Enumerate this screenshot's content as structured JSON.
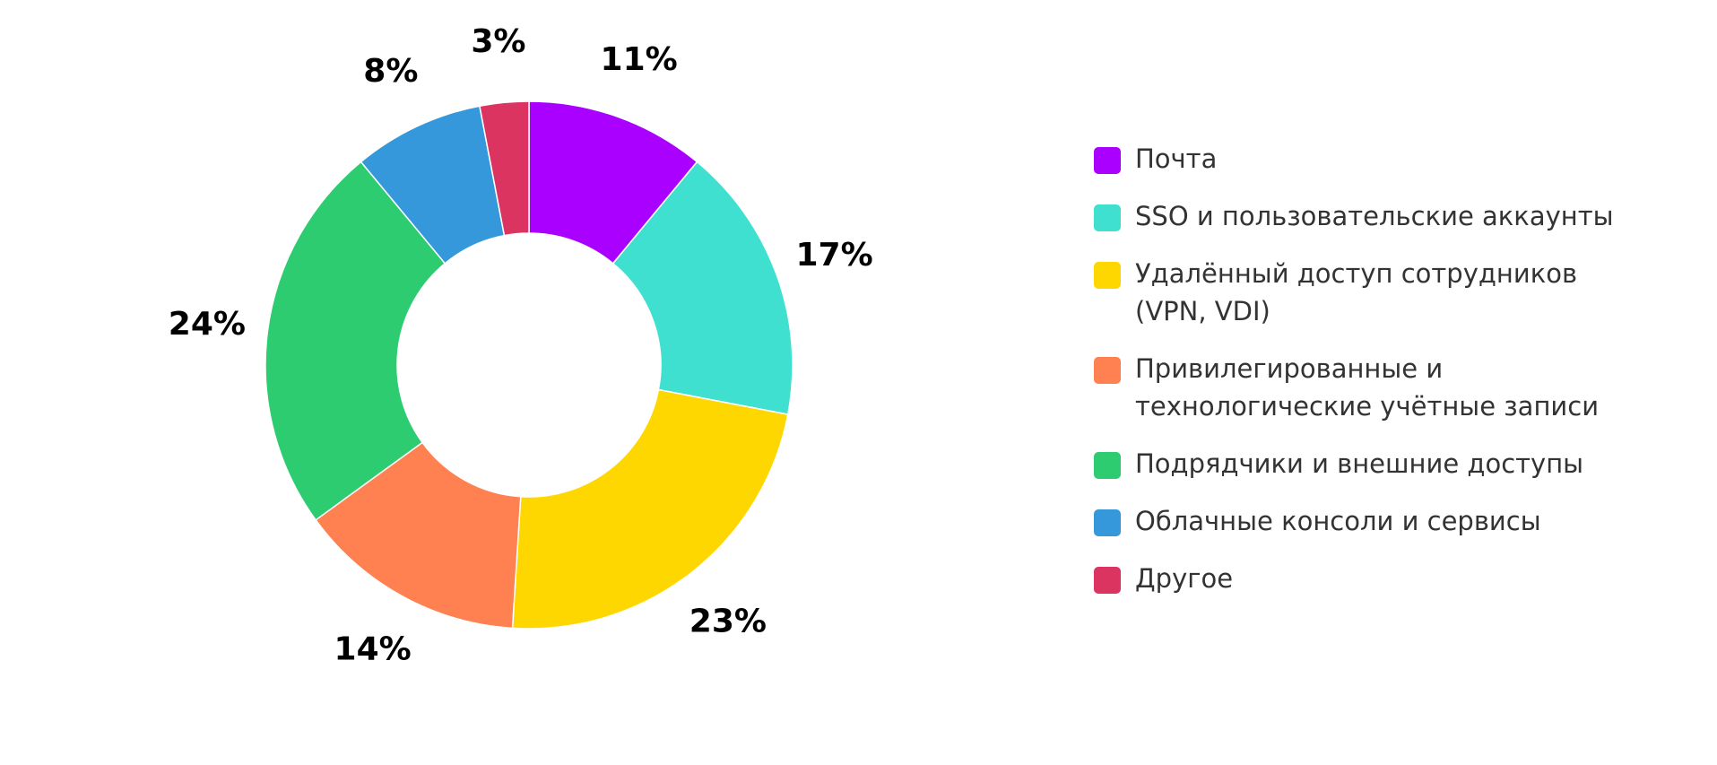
{
  "chart_data": {
    "type": "pie",
    "variant": "donut",
    "title": "",
    "categories": [
      "Почта",
      "SSO и пользовательские аккаунты",
      "Удалённый доступ сотрудников (VPN, VDI)",
      "Привилегированные и технологические учётные записи",
      "Подрядчики и внешние доступы",
      "Облачные консоли и сервисы",
      "Другое"
    ],
    "values": [
      11,
      17,
      23,
      14,
      24,
      8,
      3
    ],
    "value_labels": [
      "11%",
      "17%",
      "23%",
      "14%",
      "24%",
      "8%",
      "3%"
    ],
    "colors": [
      "#AA00FF",
      "#40E0D0",
      "#FFD700",
      "#FF8050",
      "#2ECC71",
      "#3498DB",
      "#DC3460"
    ],
    "unit": "%",
    "legend_position": "right",
    "start_angle": "top",
    "direction": "clockwise"
  },
  "legend": {
    "items": [
      {
        "label": "Почта",
        "color": "#AA00FF"
      },
      {
        "label": "SSO и пользовательские аккаунты",
        "color": "#40E0D0"
      },
      {
        "label": "Удалённый доступ сотрудников (VPN, VDI)",
        "color": "#FFD700"
      },
      {
        "label": "Привилегированные и технологические учётные записи",
        "color": "#FF8050"
      },
      {
        "label": "Подрядчики и внешние доступы",
        "color": "#2ECC71"
      },
      {
        "label": "Облачные консоли и сервисы",
        "color": "#3498DB"
      },
      {
        "label": "Другое",
        "color": "#DC3460"
      }
    ]
  }
}
